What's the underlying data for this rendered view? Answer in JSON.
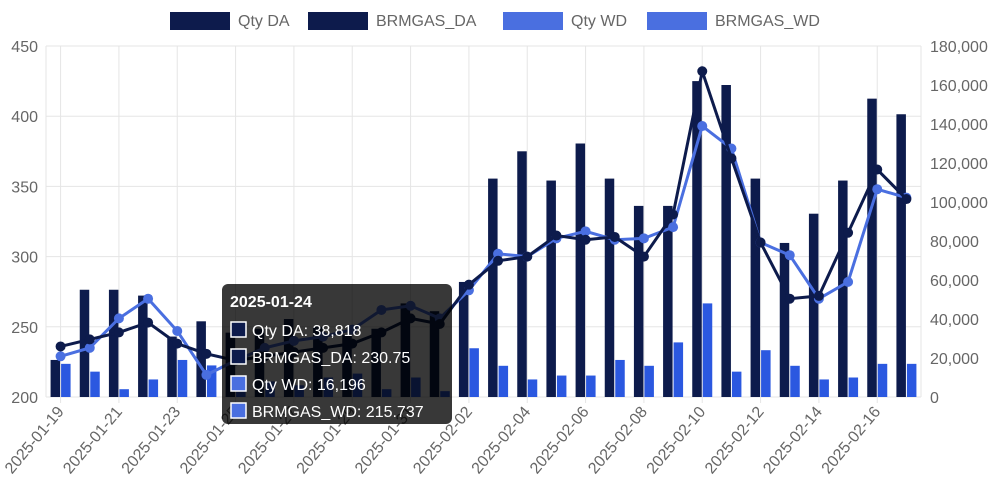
{
  "chart_data": {
    "type": "bar",
    "title": "",
    "dates": [
      "2025-01-19",
      "2025-01-20",
      "2025-01-21",
      "2025-01-22",
      "2025-01-23",
      "2025-01-24",
      "2025-01-25",
      "2025-01-26",
      "2025-01-27",
      "2025-01-28",
      "2025-01-29",
      "2025-01-30",
      "2025-01-31",
      "2025-02-01",
      "2025-02-02",
      "2025-02-03",
      "2025-02-04",
      "2025-02-05",
      "2025-02-06",
      "2025-02-07",
      "2025-02-08",
      "2025-02-09",
      "2025-02-10",
      "2025-02-11",
      "2025-02-12",
      "2025-02-13",
      "2025-02-14",
      "2025-02-15",
      "2025-02-16",
      "2025-02-17"
    ],
    "x_tick_labels": [
      "2025-01-19",
      "2025-01-21",
      "2025-01-23",
      "2025-01-25",
      "2025-01-27",
      "2025-01-29",
      "2025-01-31",
      "2025-02-02",
      "2025-02-04",
      "2025-02-06",
      "2025-02-08",
      "2025-02-10",
      "2025-02-12",
      "2025-02-14",
      "2025-02-16"
    ],
    "y_left": {
      "min": 200,
      "max": 450,
      "ticks": [
        200,
        250,
        300,
        350,
        400,
        450
      ]
    },
    "y_right": {
      "min": 0,
      "max": 180000,
      "ticks": [
        0,
        20000,
        40000,
        60000,
        80000,
        100000,
        120000,
        140000,
        160000,
        180000
      ],
      "tick_labels": [
        "0",
        "20,000",
        "40,000",
        "60,000",
        "80,000",
        "100,000",
        "120,000",
        "140,000",
        "160,000",
        "180,000"
      ]
    },
    "grid": true,
    "legend_position": "top",
    "series": [
      {
        "name": "Qty DA",
        "kind": "bar",
        "axis": "right",
        "color": "#0d1b4c",
        "values": [
          19000,
          55000,
          55000,
          52000,
          31000,
          38818,
          33000,
          35000,
          40000,
          36000,
          32000,
          35000,
          48000,
          44000,
          59000,
          112000,
          126000,
          111000,
          130000,
          112000,
          98000,
          98000,
          162000,
          160000,
          112000,
          79000,
          94000,
          111000,
          153000,
          145000
        ]
      },
      {
        "name": "BRMGAS_DA",
        "kind": "line",
        "axis": "left",
        "color": "#0d1b4c",
        "values": [
          236,
          241,
          246,
          253,
          238,
          230.75,
          226,
          229,
          232,
          235,
          238,
          246,
          256,
          252,
          280,
          297,
          300,
          315,
          312,
          314,
          300,
          330,
          432,
          370,
          310,
          270,
          272,
          317,
          362,
          341
        ]
      },
      {
        "name": "Qty WD",
        "kind": "bar",
        "axis": "right",
        "color": "#2b58e0",
        "values": [
          17000,
          13000,
          4000,
          9000,
          19000,
          16196,
          6000,
          8000,
          6000,
          10000,
          12000,
          4000,
          10000,
          3000,
          25000,
          16000,
          9000,
          11000,
          11000,
          19000,
          16000,
          28000,
          48000,
          13000,
          24000,
          16000,
          9000,
          10000,
          17000,
          17000
        ]
      },
      {
        "name": "BRMGAS_WD",
        "kind": "line",
        "axis": "left",
        "color": "#4a6fe0",
        "values": [
          229,
          235,
          256,
          270,
          247,
          215.737,
          226,
          235,
          240,
          243,
          248,
          262,
          265,
          256,
          276,
          302,
          300,
          313,
          318,
          312,
          313,
          321,
          393,
          377,
          310,
          301,
          270,
          282,
          348,
          342
        ]
      }
    ]
  },
  "legend": [
    {
      "label": "Qty DA",
      "color": "#0d1b4c"
    },
    {
      "label": "BRMGAS_DA",
      "color": "#0d1b4c"
    },
    {
      "label": "Qty WD",
      "color": "#4a6fe0"
    },
    {
      "label": "BRMGAS_WD",
      "color": "#4a6fe0"
    }
  ],
  "tooltip": {
    "title": "2025-01-24",
    "index": 5,
    "rows": [
      {
        "label": "Qty DA: 38,818",
        "color": "#0d1b4c"
      },
      {
        "label": "BRMGAS_DA: 230.75",
        "color": "#0d1b4c"
      },
      {
        "label": "Qty WD: 16,196",
        "color": "#4a6fe0"
      },
      {
        "label": "BRMGAS_WD: 215.737",
        "color": "#4a6fe0"
      }
    ]
  }
}
